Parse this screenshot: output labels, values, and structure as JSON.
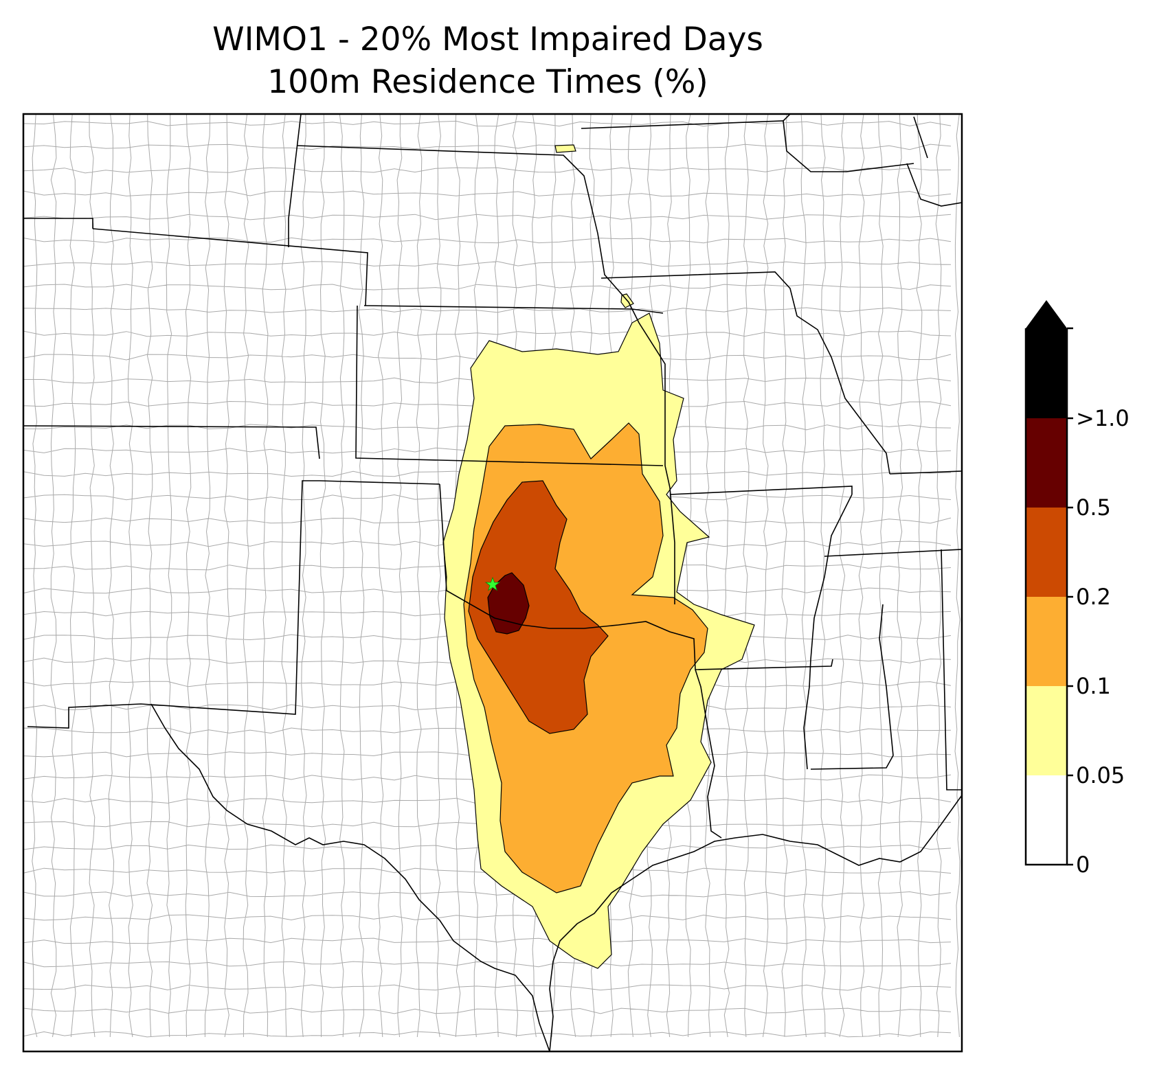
{
  "title_line1": "WIMO1 - 20% Most Impaired Days",
  "title_line2": "100m Residence Times (%)",
  "colorbar": {
    "levels": [
      "0",
      "0.05",
      "0.1",
      "0.2",
      "0.5",
      ">1.0"
    ],
    "colors": [
      "#ffffff",
      "#ffff99",
      "#fdae32",
      "#cc4a02",
      "#660000",
      "#000000"
    ],
    "extend": "max"
  },
  "map": {
    "background": "#ffffff",
    "state_line_color": "#000000",
    "county_line_color": "#a0a0a0",
    "site_marker_color": "#33ff33",
    "site_marker_icon": "star-icon"
  }
}
